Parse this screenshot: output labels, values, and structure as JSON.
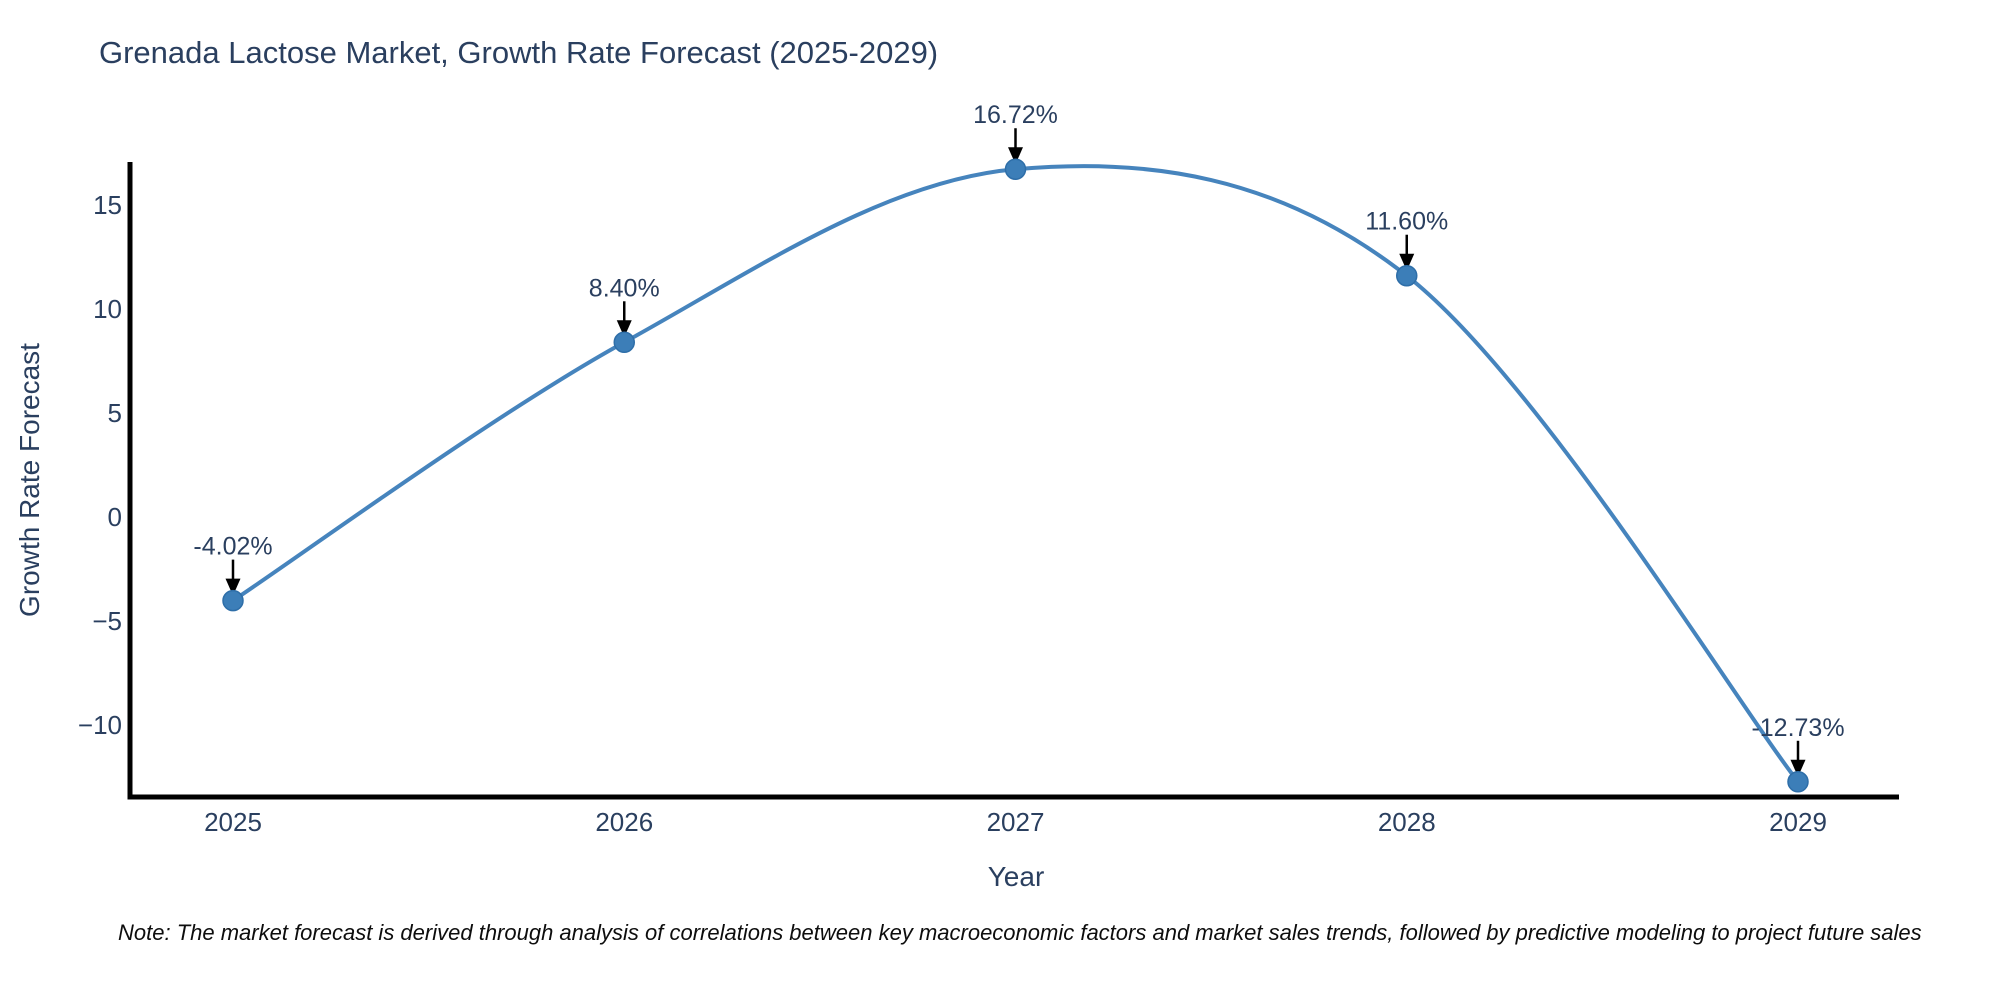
{
  "page": {
    "background": "#ffffff"
  },
  "header": {
    "title": "Grenada Lactose Market, Growth Rate Forecast (2025-2029)"
  },
  "chart_data": {
    "type": "line",
    "line_shape": "spline",
    "title": "Grenada Lactose Market, Growth Rate Forecast (2025-2029)",
    "xlabel": "Year",
    "ylabel": "Growth Rate Forecast",
    "categories": [
      "2025",
      "2026",
      "2027",
      "2028",
      "2029"
    ],
    "values": [
      -4.02,
      8.4,
      16.72,
      11.6,
      -12.73
    ],
    "point_labels": [
      "-4.02%",
      "8.40%",
      "16.72%",
      "11.60%",
      "-12.73%"
    ],
    "ytick_values": [
      -10,
      -5,
      0,
      5,
      10,
      15
    ],
    "ytick_labels": [
      "−10",
      "−5",
      "0",
      "5",
      "10",
      "15"
    ],
    "ylim": [
      -13.6,
      17.3
    ],
    "grid": false,
    "legend": "none",
    "colors": {
      "line": "#4684bd",
      "marker": "#3c7eb8",
      "marker_edge": "#2e6ea8",
      "axis_spine": "#000000",
      "text": "#2a3f5f",
      "annotation_text": "#2a3f5f",
      "annotation_arrow": "#000000"
    }
  },
  "footer": {
    "note": "Note: The market forecast is derived through analysis of correlations between key macroeconomic factors and market sales trends, followed by predictive modeling to project future sales"
  }
}
